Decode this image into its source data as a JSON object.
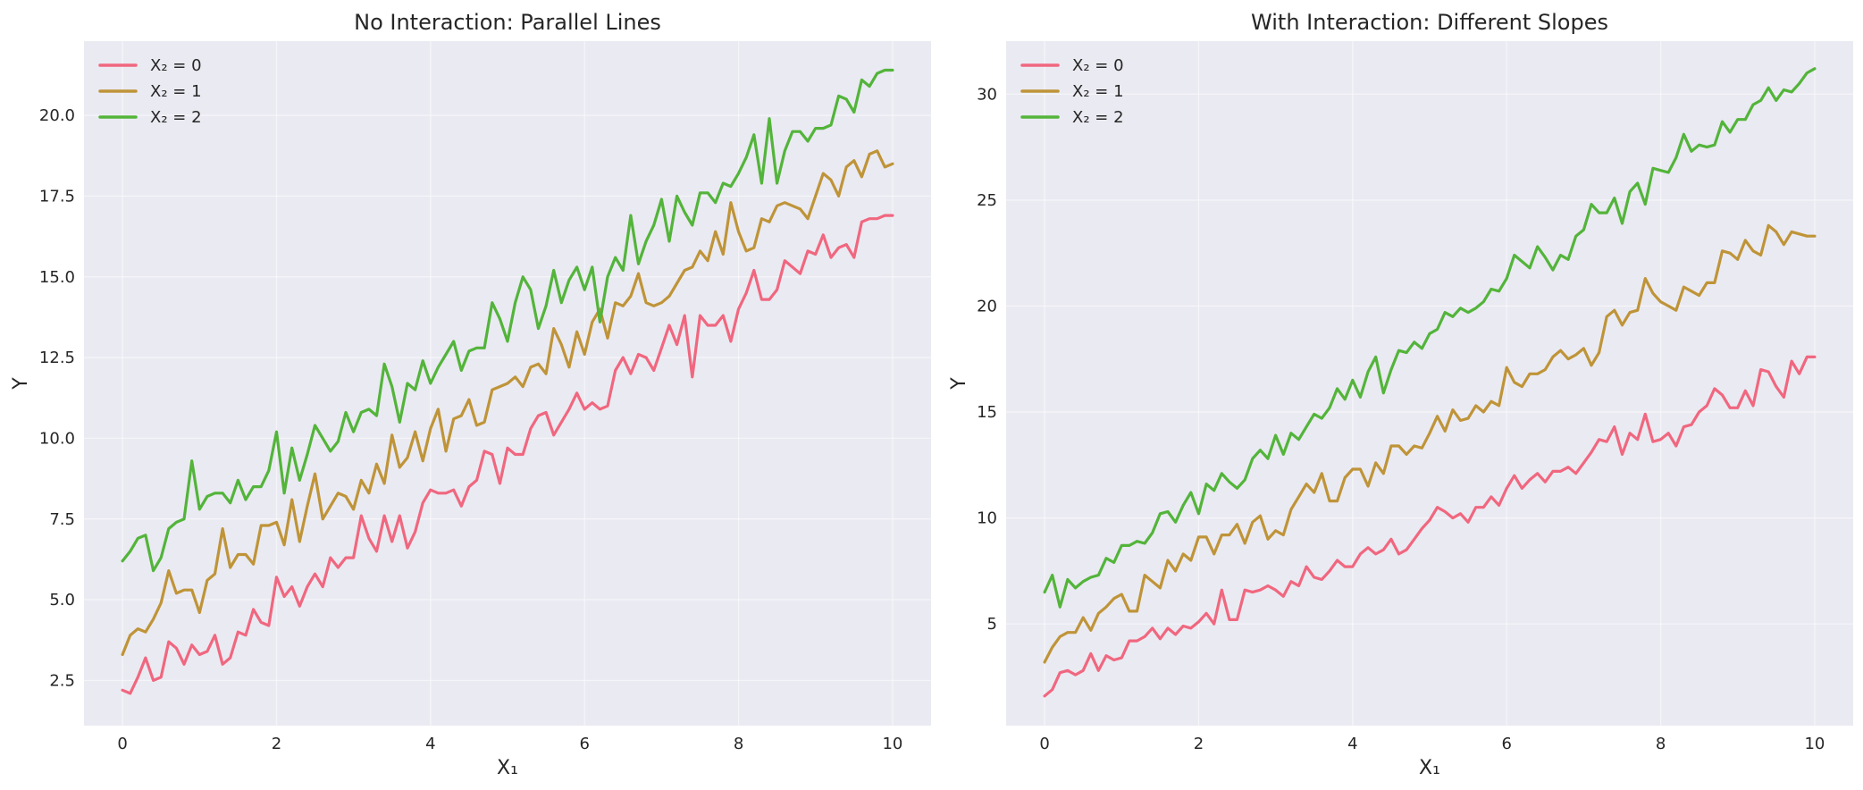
{
  "chart_data": [
    {
      "type": "line",
      "title": "No Interaction: Parallel Lines",
      "xlabel": "X₁",
      "ylabel": "Y",
      "xlim": [
        -0.5,
        10.5
      ],
      "ylim": [
        1.1,
        22.3
      ],
      "xticks": [
        0,
        2,
        4,
        6,
        8,
        10
      ],
      "yticks": [
        2.5,
        5.0,
        7.5,
        10.0,
        12.5,
        15.0,
        17.5,
        20.0
      ],
      "ytick_labels": [
        "2.5",
        "5.0",
        "7.5",
        "10.0",
        "12.5",
        "15.0",
        "17.5",
        "20.0"
      ],
      "grid": true,
      "legend": "top-left",
      "x_step": 0.1,
      "series": [
        {
          "name": "X₂ = 0",
          "color": "#f0677f",
          "values": [
            2.2,
            2.1,
            2.6,
            3.2,
            2.5,
            2.6,
            3.7,
            3.5,
            3.0,
            3.6,
            3.3,
            3.4,
            3.9,
            3.0,
            3.2,
            4.0,
            3.9,
            4.7,
            4.3,
            4.2,
            5.7,
            5.1,
            5.4,
            4.8,
            5.4,
            5.8,
            5.4,
            6.3,
            6.0,
            6.3,
            6.3,
            7.6,
            6.9,
            6.5,
            7.6,
            6.8,
            7.6,
            6.6,
            7.1,
            8.0,
            8.4,
            8.3,
            8.3,
            8.4,
            7.9,
            8.5,
            8.7,
            9.6,
            9.5,
            8.6,
            9.7,
            9.5,
            9.5,
            10.3,
            10.7,
            10.8,
            10.1,
            10.5,
            10.9,
            11.4,
            10.9,
            11.1,
            10.9,
            11.0,
            12.1,
            12.5,
            12.0,
            12.6,
            12.5,
            12.1,
            12.8,
            13.5,
            12.9,
            13.8,
            11.9,
            13.8,
            13.5,
            13.5,
            13.8,
            13.0,
            14.0,
            14.5,
            15.2,
            14.3,
            14.3,
            14.6,
            15.5,
            15.3,
            15.1,
            15.8,
            15.7,
            16.3,
            15.6,
            15.9,
            16.0,
            15.6,
            16.7,
            16.8,
            16.8,
            16.9,
            16.9
          ]
        },
        {
          "name": "X₂ = 1",
          "color": "#bf9438",
          "values": [
            3.3,
            3.9,
            4.1,
            4.0,
            4.4,
            4.9,
            5.9,
            5.2,
            5.3,
            5.3,
            4.6,
            5.6,
            5.8,
            7.2,
            6.0,
            6.4,
            6.4,
            6.1,
            7.3,
            7.3,
            7.4,
            6.7,
            8.1,
            6.8,
            7.9,
            8.9,
            7.5,
            7.9,
            8.3,
            8.2,
            7.8,
            8.7,
            8.3,
            9.2,
            8.6,
            10.1,
            9.1,
            9.4,
            10.2,
            9.3,
            10.3,
            10.9,
            9.6,
            10.6,
            10.7,
            11.2,
            10.4,
            10.5,
            11.5,
            11.6,
            11.7,
            11.9,
            11.6,
            12.2,
            12.3,
            12.0,
            13.4,
            12.9,
            12.2,
            13.3,
            12.6,
            13.6,
            14.0,
            13.1,
            14.2,
            14.1,
            14.4,
            15.1,
            14.2,
            14.1,
            14.2,
            14.4,
            14.8,
            15.2,
            15.3,
            15.8,
            15.5,
            16.4,
            15.7,
            17.3,
            16.4,
            15.8,
            15.9,
            16.8,
            16.7,
            17.2,
            17.3,
            17.2,
            17.1,
            16.8,
            17.5,
            18.2,
            18.0,
            17.5,
            18.4,
            18.6,
            18.1,
            18.8,
            18.9,
            18.4,
            18.5
          ]
        },
        {
          "name": "X₂ = 2",
          "color": "#53b43a",
          "values": [
            6.2,
            6.5,
            6.9,
            7.0,
            5.9,
            6.3,
            7.2,
            7.4,
            7.5,
            9.3,
            7.8,
            8.2,
            8.3,
            8.3,
            8.0,
            8.7,
            8.1,
            8.5,
            8.5,
            9.0,
            10.2,
            8.3,
            9.7,
            8.7,
            9.5,
            10.4,
            10.0,
            9.6,
            9.9,
            10.8,
            10.2,
            10.8,
            10.9,
            10.7,
            12.3,
            11.6,
            10.5,
            11.7,
            11.5,
            12.4,
            11.7,
            12.2,
            12.6,
            13.0,
            12.1,
            12.7,
            12.8,
            12.8,
            14.2,
            13.7,
            13.0,
            14.2,
            15.0,
            14.6,
            13.4,
            14.1,
            15.2,
            14.2,
            14.9,
            15.3,
            14.6,
            15.3,
            13.6,
            15.0,
            15.6,
            15.2,
            16.9,
            15.4,
            16.1,
            16.6,
            17.4,
            16.1,
            17.5,
            17.0,
            16.6,
            17.6,
            17.6,
            17.3,
            17.9,
            17.8,
            18.2,
            18.7,
            19.4,
            17.9,
            19.9,
            17.9,
            18.9,
            19.5,
            19.5,
            19.2,
            19.6,
            19.6,
            19.7,
            20.6,
            20.5,
            20.1,
            21.1,
            20.9,
            21.3,
            21.4,
            21.4
          ]
        }
      ]
    },
    {
      "type": "line",
      "title": "With Interaction: Different Slopes",
      "xlabel": "X₁",
      "ylabel": "Y",
      "xlim": [
        -0.5,
        10.5
      ],
      "ylim": [
        0.2,
        32.5
      ],
      "xticks": [
        0,
        2,
        4,
        6,
        8,
        10
      ],
      "yticks": [
        5,
        10,
        15,
        20,
        25,
        30
      ],
      "ytick_labels": [
        "5",
        "10",
        "15",
        "20",
        "25",
        "30"
      ],
      "grid": true,
      "legend": "top-left",
      "x_step": 0.1,
      "series": [
        {
          "name": "X₂ = 0",
          "color": "#f0677f",
          "values": [
            1.6,
            1.9,
            2.7,
            2.8,
            2.6,
            2.8,
            3.6,
            2.8,
            3.5,
            3.3,
            3.4,
            4.2,
            4.2,
            4.4,
            4.8,
            4.3,
            4.8,
            4.5,
            4.9,
            4.8,
            5.1,
            5.5,
            5.0,
            6.6,
            5.2,
            5.2,
            6.6,
            6.5,
            6.6,
            6.8,
            6.6,
            6.3,
            7.0,
            6.8,
            7.7,
            7.2,
            7.1,
            7.5,
            8.0,
            7.7,
            7.7,
            8.3,
            8.6,
            8.3,
            8.5,
            9.0,
            8.3,
            8.5,
            9.0,
            9.5,
            9.9,
            10.5,
            10.3,
            10.0,
            10.2,
            9.8,
            10.5,
            10.5,
            11.0,
            10.6,
            11.4,
            12.0,
            11.4,
            11.8,
            12.1,
            11.7,
            12.2,
            12.2,
            12.4,
            12.1,
            12.6,
            13.1,
            13.7,
            13.6,
            14.3,
            13.0,
            14.0,
            13.7,
            14.9,
            13.6,
            13.7,
            14.0,
            13.4,
            14.3,
            14.4,
            15.0,
            15.3,
            16.1,
            15.8,
            15.2,
            15.2,
            16.0,
            15.3,
            17.0,
            16.9,
            16.2,
            15.7,
            17.4,
            16.8,
            17.6,
            17.6
          ]
        },
        {
          "name": "X₂ = 1",
          "color": "#bf9438",
          "values": [
            3.2,
            3.9,
            4.4,
            4.6,
            4.6,
            5.3,
            4.7,
            5.5,
            5.8,
            6.2,
            6.4,
            5.6,
            5.6,
            7.3,
            7.0,
            6.7,
            8.0,
            7.5,
            8.3,
            8.0,
            9.1,
            9.1,
            8.3,
            9.2,
            9.2,
            9.7,
            8.8,
            9.8,
            10.1,
            9.0,
            9.4,
            9.2,
            10.4,
            11.0,
            11.6,
            11.2,
            12.1,
            10.8,
            10.8,
            11.9,
            12.3,
            12.3,
            11.5,
            12.6,
            12.1,
            13.4,
            13.4,
            13.0,
            13.4,
            13.3,
            14.0,
            14.8,
            14.1,
            15.1,
            14.6,
            14.7,
            15.3,
            15.0,
            15.5,
            15.3,
            17.1,
            16.4,
            16.2,
            16.8,
            16.8,
            17.0,
            17.6,
            17.9,
            17.5,
            17.7,
            18.0,
            17.2,
            17.8,
            19.5,
            19.8,
            19.1,
            19.7,
            19.8,
            21.3,
            20.6,
            20.2,
            20.0,
            19.8,
            20.9,
            20.7,
            20.5,
            21.1,
            21.1,
            22.6,
            22.5,
            22.2,
            23.1,
            22.6,
            22.4,
            23.8,
            23.5,
            22.9,
            23.5,
            23.4,
            23.3,
            23.3
          ]
        },
        {
          "name": "X₂ = 2",
          "color": "#53b43a",
          "values": [
            6.5,
            7.3,
            5.8,
            7.1,
            6.7,
            7.0,
            7.2,
            7.3,
            8.1,
            7.9,
            8.7,
            8.7,
            8.9,
            8.8,
            9.3,
            10.2,
            10.3,
            9.8,
            10.6,
            11.2,
            10.2,
            11.6,
            11.3,
            12.1,
            11.7,
            11.4,
            11.8,
            12.8,
            13.2,
            12.8,
            13.9,
            13.0,
            14.0,
            13.7,
            14.3,
            14.9,
            14.7,
            15.2,
            16.1,
            15.6,
            16.5,
            15.7,
            16.9,
            17.6,
            15.9,
            17.0,
            17.9,
            17.8,
            18.3,
            18.0,
            18.7,
            18.9,
            19.7,
            19.5,
            19.9,
            19.7,
            19.9,
            20.2,
            20.8,
            20.7,
            21.3,
            22.4,
            22.1,
            21.8,
            22.8,
            22.3,
            21.7,
            22.4,
            22.2,
            23.3,
            23.6,
            24.8,
            24.4,
            24.4,
            25.1,
            23.9,
            25.4,
            25.8,
            24.8,
            26.5,
            26.4,
            26.3,
            27.0,
            28.1,
            27.3,
            27.6,
            27.5,
            27.6,
            28.7,
            28.2,
            28.8,
            28.8,
            29.5,
            29.7,
            30.3,
            29.7,
            30.2,
            30.1,
            30.5,
            31.0,
            31.2
          ]
        }
      ]
    }
  ]
}
